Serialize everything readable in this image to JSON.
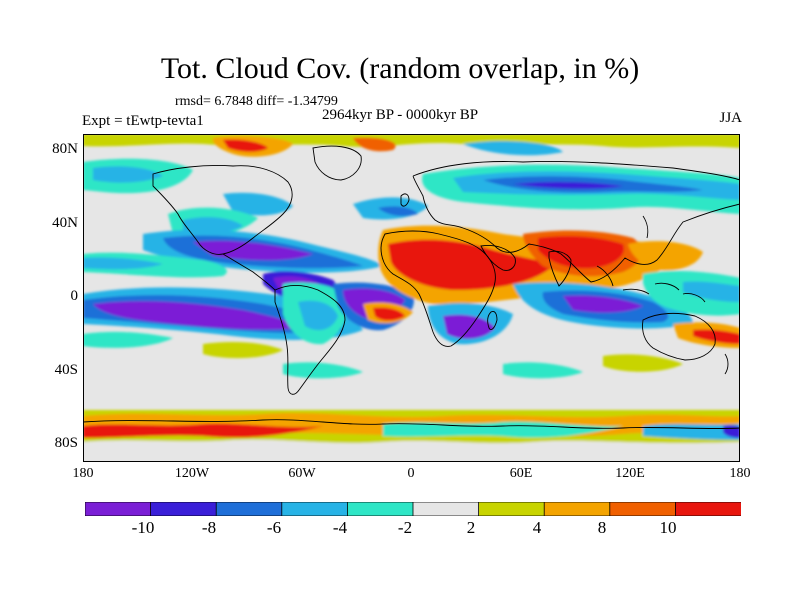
{
  "figure": {
    "title": "Tot. Cloud Cov. (random overlap, in %)",
    "stats": "rmsd= 6.7848  diff= -1.34799",
    "subtitle": "2964kyr BP - 0000kyr BP",
    "left_label": "Expt = tEwtp-tevta1",
    "right_label": "JJA"
  },
  "axes": {
    "y_ticks": [
      "80N",
      "40N",
      "0",
      "40S",
      "80S"
    ],
    "x_ticks": [
      "180",
      "120W",
      "60W",
      "0",
      "60E",
      "120E",
      "180"
    ]
  },
  "colorbar": {
    "labels": [
      "-10",
      "-8",
      "-6",
      "-4",
      "-2",
      "2",
      "4",
      "8",
      "10"
    ],
    "colors": [
      "#7b1fd6",
      "#3a1fd8",
      "#1f6fd8",
      "#27b3e6",
      "#2ee6c6",
      "#e6e6e6",
      "#c8d400",
      "#f4a400",
      "#f06000",
      "#e8160e"
    ]
  },
  "palette": {
    "background": "#e6e6e6",
    "coast": "#000000"
  }
}
